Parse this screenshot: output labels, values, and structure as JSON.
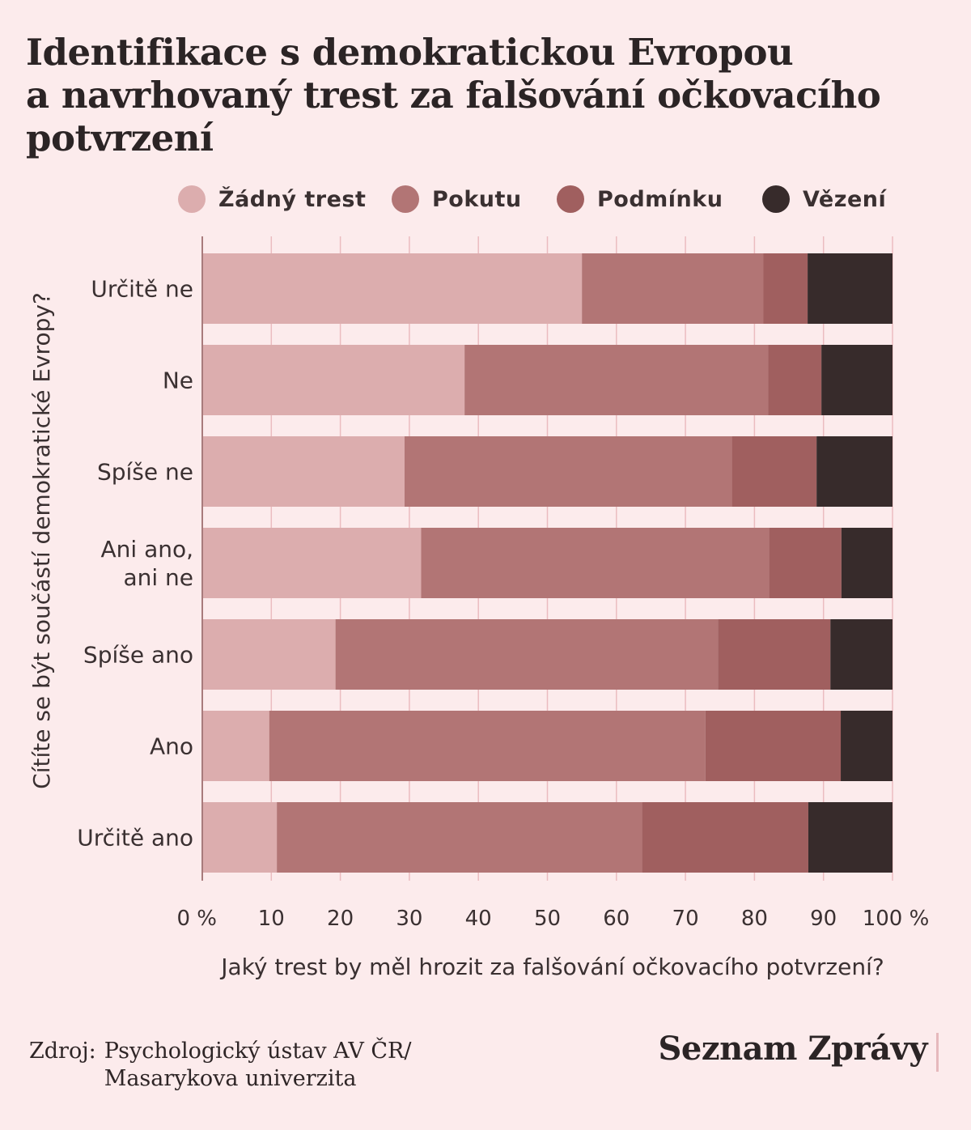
{
  "title_lines": [
    "Identifikace s demokratickou Evropou",
    "a navrhovaný trest za falšování očkovacího",
    "potvrzení"
  ],
  "legend": [
    {
      "label": "Žádný trest",
      "color": "#dcadae"
    },
    {
      "label": "Pokutu",
      "color": "#b27575"
    },
    {
      "label": "Podmínku",
      "color": "#a05f5f"
    },
    {
      "label": "Vězení",
      "color": "#372b2b"
    }
  ],
  "source": {
    "label": "Zdroj:",
    "lines": [
      "Psychologický ústav AV ČR/",
      "Masarykova univerzita"
    ]
  },
  "brand": "Seznam Zprávy",
  "chart_data": {
    "type": "bar",
    "orientation": "horizontal",
    "stacked": true,
    "title": "Identifikace s demokratickou Evropou a navrhovaný trest za falšování očkovacího potvrzení",
    "xlabel": "Jaký trest by měl hrozit za falšování očkovacího potvrzení?",
    "ylabel": "Cítíte se být součástí demokratické Evropy?",
    "xlim": [
      0,
      100
    ],
    "x_ticks": [
      "0 %",
      "10",
      "20",
      "30",
      "40",
      "50",
      "60",
      "70",
      "80",
      "90",
      "100 %"
    ],
    "legend_position": "top",
    "grid": true,
    "categories": [
      [
        "Určitě ne"
      ],
      [
        "Ne"
      ],
      [
        "Spíše ne"
      ],
      [
        "Ani ano,",
        "ani ne"
      ],
      [
        "Spíše ano"
      ],
      [
        "Ano"
      ],
      [
        "Určitě ano"
      ]
    ],
    "series": [
      {
        "name": "Žádný trest",
        "color": "#dcadae",
        "values": [
          55,
          38,
          29.3,
          31.7,
          19.3,
          9.7,
          10.8
        ]
      },
      {
        "name": "Pokutu",
        "color": "#b27575",
        "values": [
          26.3,
          44,
          47.4,
          50.4,
          55.4,
          63.2,
          52.9
        ]
      },
      {
        "name": "Podmínku",
        "color": "#a05f5f",
        "values": [
          6.4,
          7.7,
          12.3,
          10.5,
          16.3,
          19.6,
          24.1
        ]
      },
      {
        "name": "Vězení",
        "color": "#372b2b",
        "values": [
          12.3,
          10.3,
          11,
          7.4,
          9,
          7.5,
          12.2
        ]
      }
    ]
  }
}
